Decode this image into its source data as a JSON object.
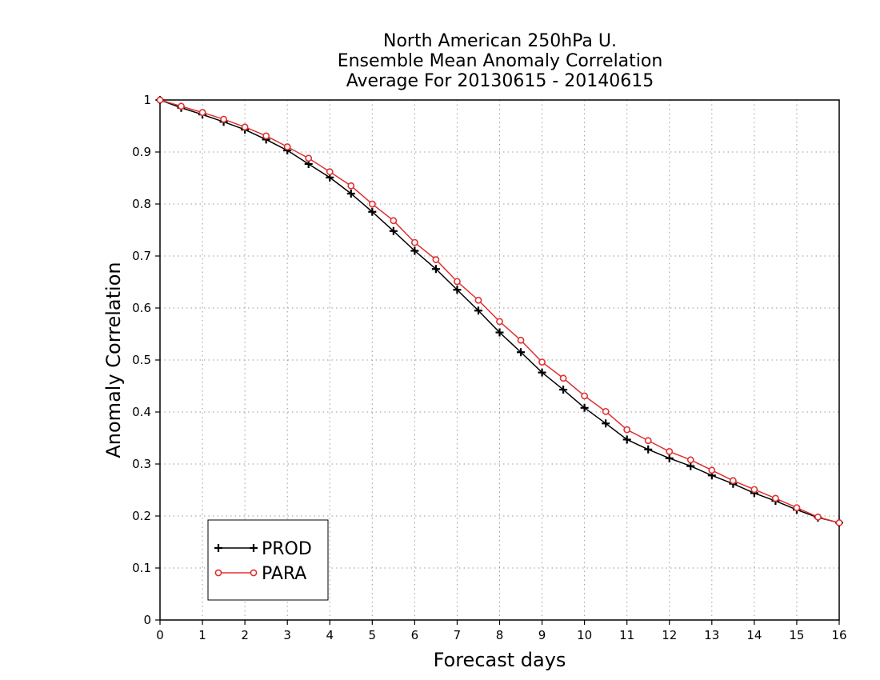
{
  "chart_data": {
    "type": "line",
    "title": [
      "North American 250hPa U.",
      "Ensemble Mean Anomaly Correlation",
      "Average For 20130615 - 20140615"
    ],
    "xlabel": "Forecast days",
    "ylabel": "Anomaly Correlation",
    "xlim": [
      0,
      16
    ],
    "ylim": [
      0,
      1
    ],
    "xticks": [
      "0",
      "1",
      "2",
      "3",
      "4",
      "5",
      "6",
      "7",
      "8",
      "9",
      "10",
      "11",
      "12",
      "13",
      "14",
      "15",
      "16"
    ],
    "yticks": [
      "0",
      "0.1",
      "0.2",
      "0.3",
      "0.4",
      "0.5",
      "0.6",
      "0.7",
      "0.8",
      "0.9",
      "1"
    ],
    "grid": true,
    "legend_position": "bottom-left",
    "x": [
      0,
      0.5,
      1,
      1.5,
      2,
      2.5,
      3,
      3.5,
      4,
      4.5,
      5,
      5.5,
      6,
      6.5,
      7,
      7.5,
      8,
      8.5,
      9,
      9.5,
      10,
      10.5,
      11,
      11.5,
      12,
      12.5,
      13,
      13.5,
      14,
      14.5,
      15,
      15.5,
      16
    ],
    "series": [
      {
        "name": "PROD",
        "color": "#000000",
        "marker": "plus",
        "values": [
          1.0,
          0.985,
          0.972,
          0.958,
          0.943,
          0.924,
          0.903,
          0.877,
          0.851,
          0.82,
          0.785,
          0.748,
          0.71,
          0.675,
          0.635,
          0.595,
          0.553,
          0.515,
          0.476,
          0.443,
          0.408,
          0.378,
          0.347,
          0.328,
          0.311,
          0.296,
          0.278,
          0.262,
          0.244,
          0.229,
          0.212,
          0.197,
          0.187
        ]
      },
      {
        "name": "PARA",
        "color": "#e03030",
        "marker": "circle",
        "values": [
          1.0,
          0.988,
          0.976,
          0.963,
          0.948,
          0.931,
          0.91,
          0.888,
          0.862,
          0.835,
          0.8,
          0.768,
          0.726,
          0.693,
          0.651,
          0.615,
          0.574,
          0.538,
          0.496,
          0.465,
          0.431,
          0.401,
          0.366,
          0.345,
          0.324,
          0.308,
          0.288,
          0.268,
          0.251,
          0.234,
          0.216,
          0.198,
          0.187
        ]
      }
    ]
  }
}
